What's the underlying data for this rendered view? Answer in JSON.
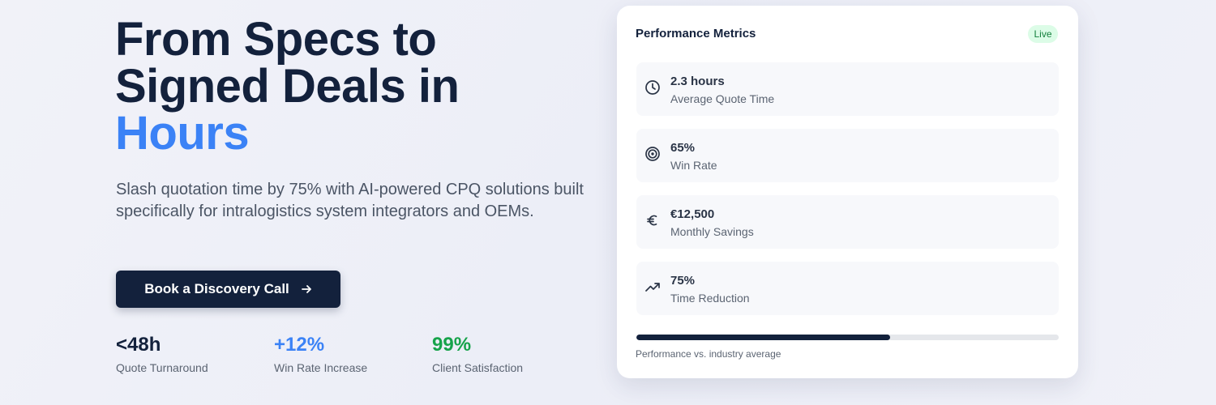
{
  "hero": {
    "title_lines": [
      "From Specs to",
      "Signed Deals in"
    ],
    "title_highlight": "Hours",
    "subtitle": "Slash quotation time by 75% with AI-powered CPQ solutions built specifically for intralogistics system integrators and OEMs.",
    "cta": "Book a Discovery Call",
    "stats": [
      {
        "value": "<48h",
        "label": "Quote Turnaround"
      },
      {
        "value": "+12%",
        "label": "Win Rate Increase"
      },
      {
        "value": "99%",
        "label": "Client Satisfaction"
      }
    ]
  },
  "card": {
    "title": "Performance Metrics",
    "badge": "Live",
    "metrics": [
      {
        "value": "2.3 hours",
        "label": "Average Quote Time"
      },
      {
        "value": "65%",
        "label": "Win Rate"
      },
      {
        "value": "€12,500",
        "label": "Monthly Savings"
      },
      {
        "value": "75%",
        "label": "Time Reduction"
      }
    ],
    "progress": 60,
    "progress_range": [
      0,
      100
    ],
    "progress_caption": "Performance vs. industry average"
  }
}
